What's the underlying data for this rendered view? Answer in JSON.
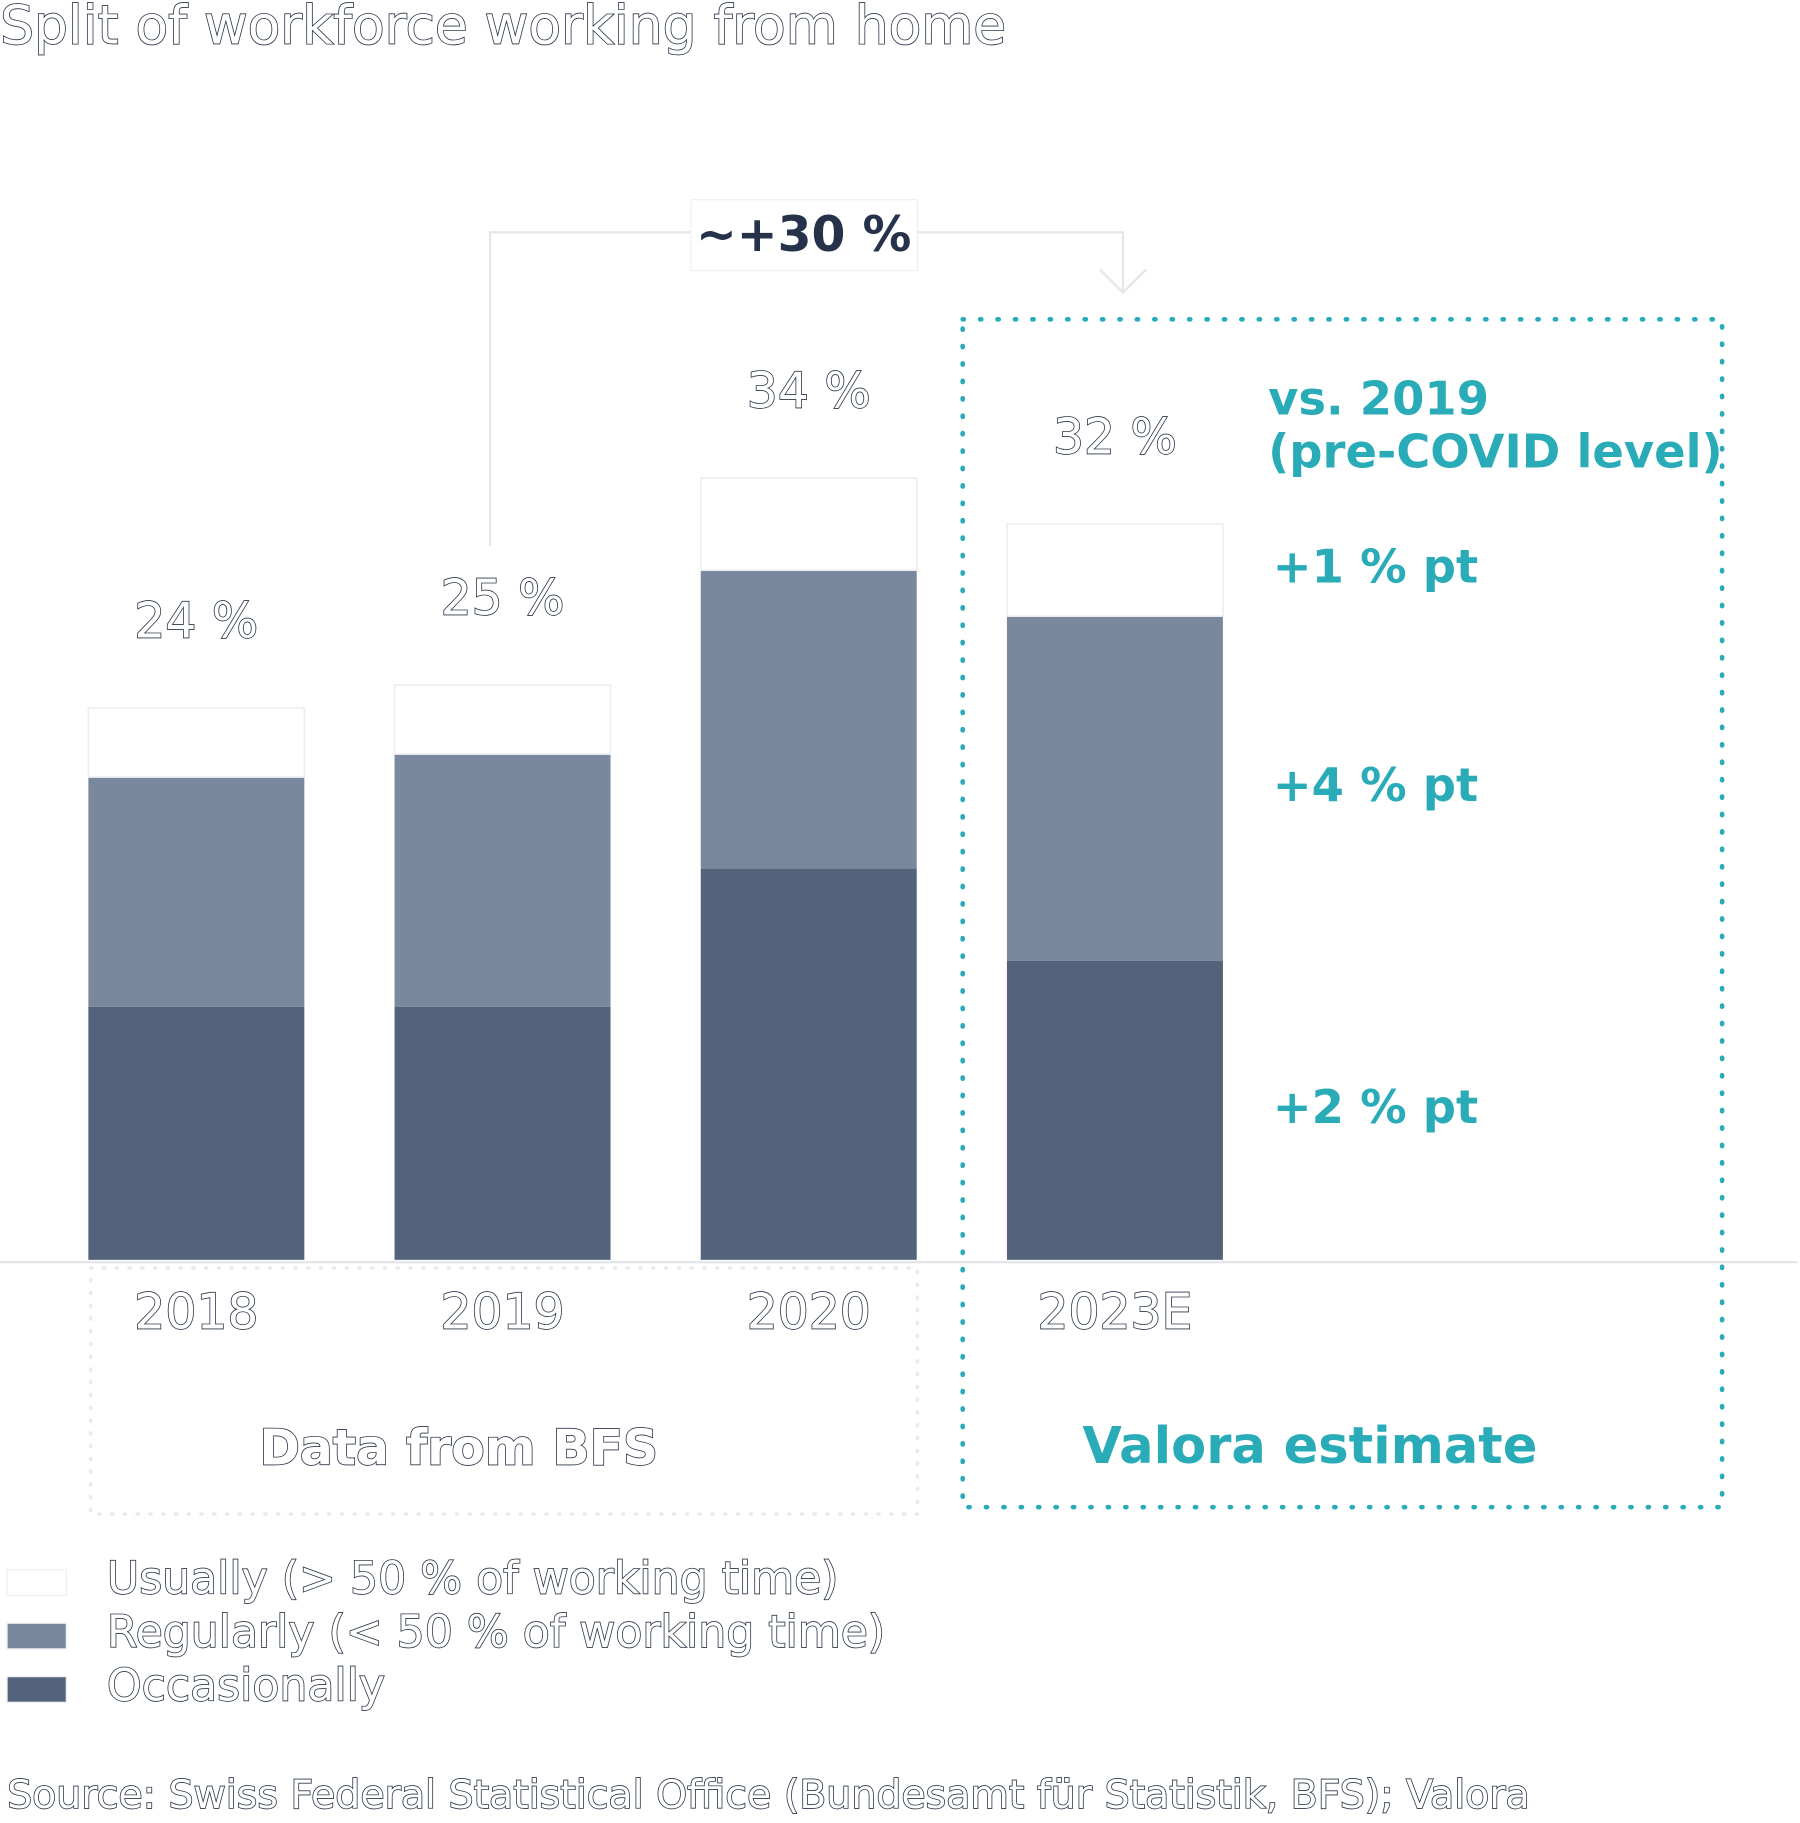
{
  "chart_data": {
    "type": "stacked_bar",
    "title": "Split of workforce working from home",
    "categories": [
      "2018",
      "2019",
      "2020",
      "2023E"
    ],
    "series": [
      {
        "name": "Occasionally",
        "color": "#52637b",
        "values": [
          11,
          11,
          17,
          13
        ],
        "delta_label": "+2 % pt"
      },
      {
        "name": "Regularly (< 50 % of working time)",
        "color": "#7a889e",
        "values": [
          10,
          11,
          13,
          15
        ],
        "delta_label": "+4 % pt"
      },
      {
        "name": "Usually (> 50 % of working time)",
        "color": "#ffffff",
        "values": [
          3,
          3,
          4,
          4
        ],
        "delta_label": "+1 % pt"
      }
    ],
    "totals": [
      24,
      25,
      34,
      32
    ],
    "total_labels": [
      "24 %",
      "25 %",
      "34 %",
      "32 %"
    ],
    "growth_label": "~+30 %",
    "comparison_note": [
      "vs. 2019",
      "(pre-COVID level)"
    ],
    "group_labels": [
      "Data from BFS",
      "Valora estimate"
    ],
    "source": "Source: Swiss Federal Statistical Office (Bundesamt für Statistik, BFS); Valora"
  }
}
